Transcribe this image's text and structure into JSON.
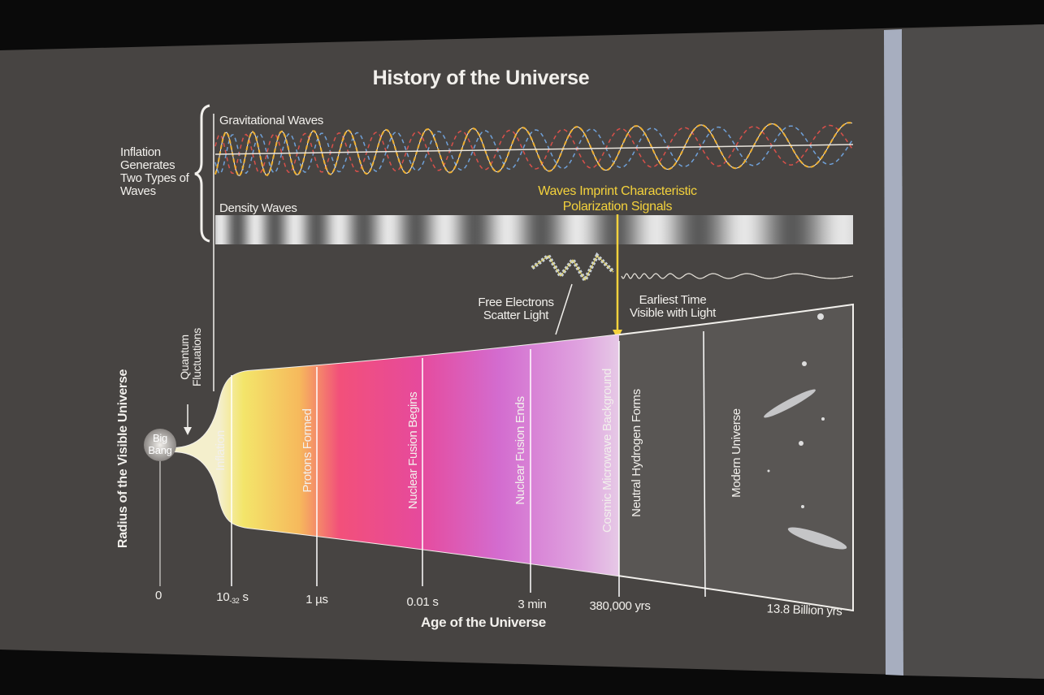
{
  "title": "History of the Universe",
  "brace_label": {
    "lines": [
      "Inflation",
      "Generates",
      "Two Types of",
      "Waves"
    ]
  },
  "waves": {
    "gravitational": "Gravitational Waves",
    "density": "Density Waves"
  },
  "imprint_note": {
    "lines": [
      "Waves Imprint Characteristic",
      "Polarization Signals"
    ]
  },
  "scatter_note": {
    "lines": [
      "Free Electrons",
      "Scatter Light"
    ]
  },
  "earliest_note": {
    "lines": [
      "Earliest Time",
      "Visible with Light"
    ]
  },
  "y_axis_label": "Radius of the Visible Universe",
  "x_axis_label": "Age of the Universe",
  "quantum_note": {
    "lines": [
      "Quantum",
      "Fluctuations"
    ]
  },
  "big_bang": {
    "lines": [
      "Big",
      "Bang"
    ]
  },
  "eras": [
    "Inflation",
    "Protons Formed",
    "Nuclear Fusion Begins",
    "Nuclear Fusion Ends",
    "Cosmic Microwave Background",
    "Neutral Hydrogen Forms",
    "Modern Universe"
  ],
  "time_ticks": [
    "0",
    {
      "base": "10",
      "exponent": "-32",
      "unit": "s"
    },
    "1 µs",
    "0.01 s",
    "3 min",
    "380,000 yrs",
    "13.8 Billion yrs"
  ]
}
